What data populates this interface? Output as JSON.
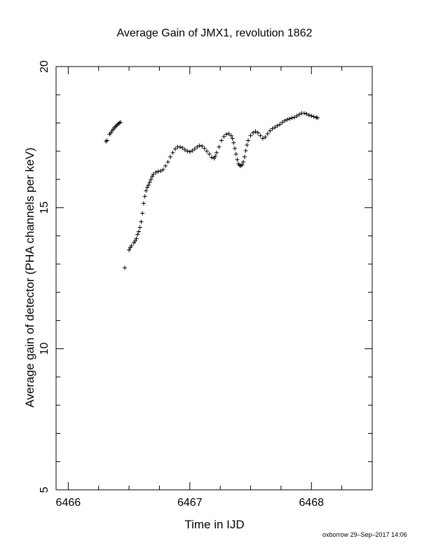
{
  "chart_data": {
    "type": "scatter",
    "title": "Average Gain of JMX1, revolution 1862",
    "xlabel": "Time in IJD",
    "ylabel": "Average gain of detector (PHA channels per keV)",
    "xlim": [
      6465.9,
      6468.5
    ],
    "ylim": [
      5,
      20
    ],
    "xticks": [
      6466,
      6467,
      6468
    ],
    "yticks": [
      5,
      10,
      15,
      20
    ],
    "x_minor_step": 0.25,
    "y_minor_step": 1,
    "grid": false,
    "legend": "none",
    "marker": "+",
    "marker_color": "#000000",
    "series": [
      {
        "points": [
          [
            6466.31,
            17.35
          ],
          [
            6466.32,
            17.38
          ],
          [
            6466.34,
            17.6
          ],
          [
            6466.35,
            17.65
          ],
          [
            6466.36,
            17.72
          ],
          [
            6466.37,
            17.78
          ],
          [
            6466.38,
            17.83
          ],
          [
            6466.39,
            17.88
          ],
          [
            6466.4,
            17.92
          ],
          [
            6466.41,
            17.96
          ],
          [
            6466.42,
            18.0
          ],
          [
            6466.43,
            18.03
          ],
          [
            6466.465,
            12.87
          ],
          [
            6466.5,
            13.5
          ],
          [
            6466.51,
            13.58
          ],
          [
            6466.52,
            13.65
          ],
          [
            6466.54,
            13.75
          ],
          [
            6466.55,
            13.82
          ],
          [
            6466.56,
            13.9
          ],
          [
            6466.57,
            14.05
          ],
          [
            6466.58,
            14.15
          ],
          [
            6466.59,
            14.3
          ],
          [
            6466.6,
            14.5
          ],
          [
            6466.61,
            14.8
          ],
          [
            6466.62,
            15.15
          ],
          [
            6466.63,
            15.4
          ],
          [
            6466.64,
            15.6
          ],
          [
            6466.65,
            15.72
          ],
          [
            6466.66,
            15.8
          ],
          [
            6466.67,
            15.9
          ],
          [
            6466.68,
            16.0
          ],
          [
            6466.69,
            16.1
          ],
          [
            6466.7,
            16.18
          ],
          [
            6466.72,
            16.25
          ],
          [
            6466.74,
            16.28
          ],
          [
            6466.76,
            16.3
          ],
          [
            6466.78,
            16.35
          ],
          [
            6466.8,
            16.48
          ],
          [
            6466.82,
            16.62
          ],
          [
            6466.84,
            16.8
          ],
          [
            6466.86,
            16.95
          ],
          [
            6466.88,
            17.08
          ],
          [
            6466.9,
            17.15
          ],
          [
            6466.92,
            17.15
          ],
          [
            6466.94,
            17.12
          ],
          [
            6466.96,
            17.05
          ],
          [
            6466.98,
            17.0
          ],
          [
            6467.0,
            16.98
          ],
          [
            6467.02,
            17.02
          ],
          [
            6467.04,
            17.08
          ],
          [
            6467.06,
            17.15
          ],
          [
            6467.08,
            17.2
          ],
          [
            6467.1,
            17.18
          ],
          [
            6467.12,
            17.1
          ],
          [
            6467.14,
            17.0
          ],
          [
            6467.16,
            16.9
          ],
          [
            6467.18,
            16.78
          ],
          [
            6467.2,
            16.75
          ],
          [
            6467.21,
            16.82
          ],
          [
            6467.22,
            16.95
          ],
          [
            6467.24,
            17.15
          ],
          [
            6467.26,
            17.38
          ],
          [
            6467.28,
            17.52
          ],
          [
            6467.3,
            17.6
          ],
          [
            6467.32,
            17.62
          ],
          [
            6467.34,
            17.55
          ],
          [
            6467.35,
            17.45
          ],
          [
            6467.36,
            17.3
          ],
          [
            6467.37,
            17.1
          ],
          [
            6467.38,
            16.9
          ],
          [
            6467.39,
            16.7
          ],
          [
            6467.4,
            16.55
          ],
          [
            6467.41,
            16.5
          ],
          [
            6467.42,
            16.48
          ],
          [
            6467.43,
            16.52
          ],
          [
            6467.44,
            16.62
          ],
          [
            6467.45,
            16.8
          ],
          [
            6467.46,
            17.02
          ],
          [
            6467.47,
            17.22
          ],
          [
            6467.48,
            17.38
          ],
          [
            6467.5,
            17.55
          ],
          [
            6467.52,
            17.65
          ],
          [
            6467.54,
            17.7
          ],
          [
            6467.56,
            17.65
          ],
          [
            6467.58,
            17.55
          ],
          [
            6467.6,
            17.45
          ],
          [
            6467.62,
            17.5
          ],
          [
            6467.64,
            17.62
          ],
          [
            6467.66,
            17.72
          ],
          [
            6467.68,
            17.8
          ],
          [
            6467.7,
            17.85
          ],
          [
            6467.72,
            17.9
          ],
          [
            6467.74,
            17.95
          ],
          [
            6467.76,
            18.02
          ],
          [
            6467.78,
            18.08
          ],
          [
            6467.8,
            18.12
          ],
          [
            6467.82,
            18.15
          ],
          [
            6467.84,
            18.18
          ],
          [
            6467.86,
            18.2
          ],
          [
            6467.88,
            18.25
          ],
          [
            6467.9,
            18.3
          ],
          [
            6467.92,
            18.35
          ],
          [
            6467.94,
            18.35
          ],
          [
            6467.96,
            18.32
          ],
          [
            6467.98,
            18.28
          ],
          [
            6468.0,
            18.25
          ],
          [
            6468.02,
            18.22
          ],
          [
            6468.04,
            18.2
          ],
          [
            6468.05,
            18.18
          ]
        ]
      }
    ]
  },
  "footer_note": "oxborrow 29–Sep–2017 14:06"
}
